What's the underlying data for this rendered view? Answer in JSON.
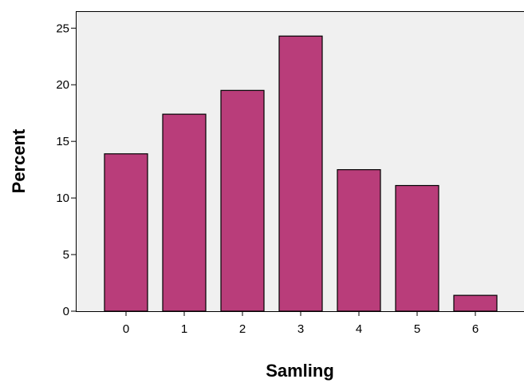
{
  "chart_data": {
    "type": "bar",
    "title": "",
    "xlabel": "Samling",
    "ylabel": "Percent",
    "categories": [
      "0",
      "1",
      "2",
      "3",
      "4",
      "5",
      "6"
    ],
    "values": [
      13.9,
      17.4,
      19.5,
      24.3,
      12.5,
      11.1,
      1.4
    ],
    "ylim": [
      0,
      26.5
    ],
    "yticks": [
      "0",
      "5",
      "10",
      "15",
      "20",
      "25"
    ],
    "grid": false,
    "legend": "none",
    "colors": {
      "bar_fill": "#b93d7a",
      "bar_stroke": "#000000",
      "plot_background": "#f0f0f0",
      "axis": "#000000"
    }
  }
}
